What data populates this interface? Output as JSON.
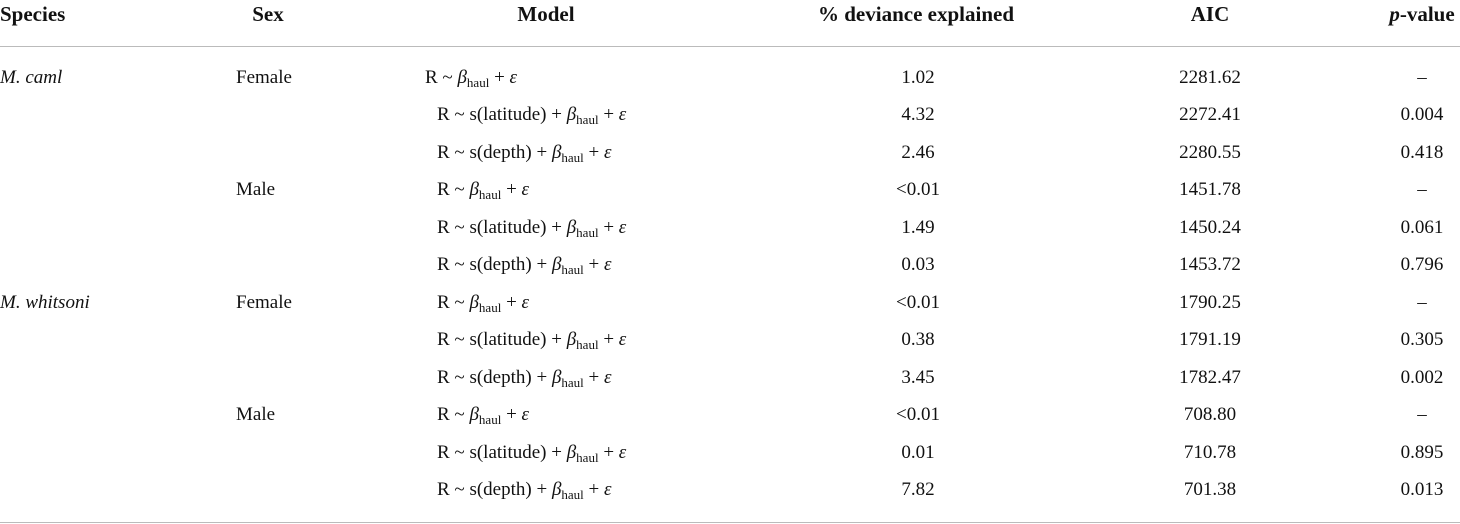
{
  "table": {
    "header": {
      "species": "Species",
      "sex": "Sex",
      "model": "Model",
      "deviance": "% deviance explained",
      "aic": "AIC",
      "p": {
        "italic": "p",
        "text": "-value"
      }
    },
    "groups": [
      {
        "species": "M. caml",
        "sexes": [
          {
            "sex": "Female",
            "rows": [
              {
                "model": {
                  "prefix": "R ~ ",
                  "beta": "β",
                  "sub": "haul",
                  "plus": " + ",
                  "eps": "ε"
                },
                "deviance": "1.02",
                "aic": "2281.62",
                "p": "–"
              },
              {
                "model": {
                  "prefix": "R ~ s(latitude) + ",
                  "beta": "β",
                  "sub": "haul",
                  "plus": " + ",
                  "eps": "ε"
                },
                "deviance": "4.32",
                "aic": "2272.41",
                "p": "0.004"
              },
              {
                "model": {
                  "prefix": "R ~ s(depth) + ",
                  "beta": "β",
                  "sub": "haul",
                  "plus": " + ",
                  "eps": "ε"
                },
                "deviance": "2.46",
                "aic": "2280.55",
                "p": "0.418"
              }
            ]
          },
          {
            "sex": "Male",
            "rows": [
              {
                "model": {
                  "prefix": "R ~ ",
                  "beta": "β",
                  "sub": "haul",
                  "plus": " + ",
                  "eps": "ε"
                },
                "deviance": "<0.01",
                "aic": "1451.78",
                "p": "–"
              },
              {
                "model": {
                  "prefix": "R ~ s(latitude) + ",
                  "beta": "β",
                  "sub": "haul",
                  "plus": " + ",
                  "eps": "ε"
                },
                "deviance": "1.49",
                "aic": "1450.24",
                "p": "0.061"
              },
              {
                "model": {
                  "prefix": "R ~ s(depth) + ",
                  "beta": "β",
                  "sub": "haul",
                  "plus": " + ",
                  "eps": "ε"
                },
                "deviance": "0.03",
                "aic": "1453.72",
                "p": "0.796"
              }
            ]
          }
        ]
      },
      {
        "species": "M. whitsoni",
        "sexes": [
          {
            "sex": "Female",
            "rows": [
              {
                "model": {
                  "prefix": "R ~ ",
                  "beta": "β",
                  "sub": "haul",
                  "plus": " + ",
                  "eps": "ε"
                },
                "deviance": "<0.01",
                "aic": "1790.25",
                "p": "–"
              },
              {
                "model": {
                  "prefix": "R ~ s(latitude) + ",
                  "beta": "β",
                  "sub": "haul",
                  "plus": " + ",
                  "eps": "ε"
                },
                "deviance": "0.38",
                "aic": "1791.19",
                "p": "0.305"
              },
              {
                "model": {
                  "prefix": "R ~ s(depth) + ",
                  "beta": "β",
                  "sub": "haul",
                  "plus": " + ",
                  "eps": "ε"
                },
                "deviance": "3.45",
                "aic": "1782.47",
                "p": "0.002"
              }
            ]
          },
          {
            "sex": "Male",
            "rows": [
              {
                "model": {
                  "prefix": "R ~ ",
                  "beta": "β",
                  "sub": "haul",
                  "plus": " + ",
                  "eps": "ε"
                },
                "deviance": "<0.01",
                "aic": "708.80",
                "p": "–"
              },
              {
                "model": {
                  "prefix": "R ~ s(latitude) + ",
                  "beta": "β",
                  "sub": "haul",
                  "plus": " + ",
                  "eps": "ε"
                },
                "deviance": "0.01",
                "aic": "710.78",
                "p": "0.895"
              },
              {
                "model": {
                  "prefix": "R ~ s(depth) + ",
                  "beta": "β",
                  "sub": "haul",
                  "plus": " + ",
                  "eps": "ε"
                },
                "deviance": "7.82",
                "aic": "701.38",
                "p": "0.013"
              }
            ]
          }
        ]
      }
    ]
  }
}
